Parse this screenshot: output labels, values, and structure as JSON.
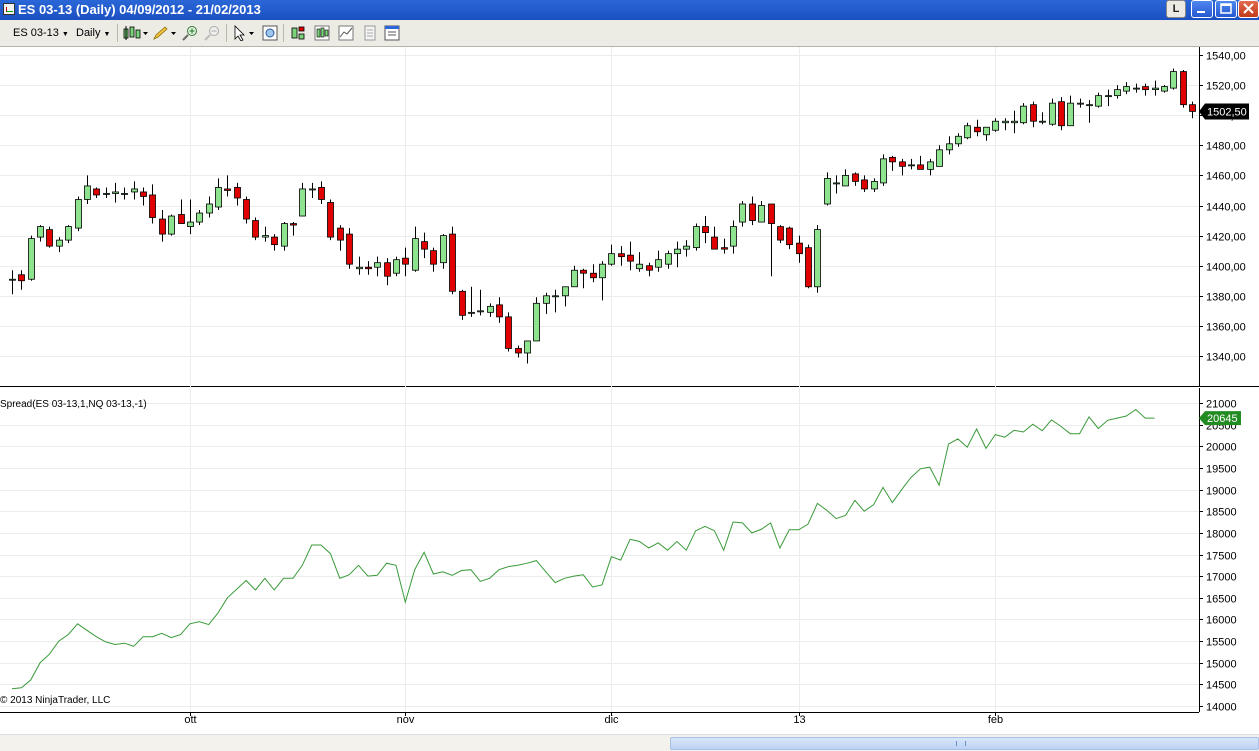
{
  "window": {
    "title": "ES 03-13 (Daily)  04/09/2012 - 21/02/2013",
    "button_l": "L"
  },
  "toolbar": {
    "instrument": "ES 03-13",
    "interval": "Daily"
  },
  "price_panel": {
    "last_price_label": "1502,50",
    "y_ticks": [
      "1540,00",
      "1520,00",
      "1500,00",
      "1480,00",
      "1460,00",
      "1440,00",
      "1420,00",
      "1400,00",
      "1380,00",
      "1360,00",
      "1340,00"
    ]
  },
  "spread_panel": {
    "indicator_label": "Spread(ES 03-13,1,NQ 03-13,-1)",
    "last_value_label": "20645",
    "copyright": "© 2013 NinjaTrader, LLC",
    "y_ticks": [
      "21000",
      "20500",
      "20000",
      "19500",
      "19000",
      "18500",
      "18000",
      "17500",
      "17000",
      "16500",
      "16000",
      "15500",
      "15000",
      "14500",
      "14000"
    ]
  },
  "x_axis": {
    "labels": [
      "ott",
      "nov",
      "dic",
      "13",
      "feb"
    ]
  },
  "colors": {
    "up_candle": "#8ee48e",
    "down_candle": "#e00000",
    "spread_line": "#3a9a3a",
    "spread_badge": "#228b22",
    "grid": "#ececec"
  },
  "chart_data": [
    {
      "type": "candlestick",
      "title": "ES 03-13 (Daily)",
      "ylim": [
        1330,
        1545
      ],
      "x_labels": [
        "ott",
        "nov",
        "dic",
        "13",
        "feb"
      ],
      "candles": [
        {
          "o": 1391,
          "h": 1397,
          "l": 1381,
          "c": 1391
        },
        {
          "o": 1394,
          "h": 1397,
          "l": 1384,
          "c": 1390
        },
        {
          "o": 1391,
          "h": 1420,
          "l": 1390,
          "c": 1418
        },
        {
          "o": 1419,
          "h": 1427,
          "l": 1416,
          "c": 1426
        },
        {
          "o": 1424,
          "h": 1426,
          "l": 1412,
          "c": 1413
        },
        {
          "o": 1413,
          "h": 1419,
          "l": 1409,
          "c": 1417
        },
        {
          "o": 1417,
          "h": 1427,
          "l": 1415,
          "c": 1426
        },
        {
          "o": 1425,
          "h": 1446,
          "l": 1423,
          "c": 1444
        },
        {
          "o": 1444,
          "h": 1460,
          "l": 1441,
          "c": 1453
        },
        {
          "o": 1451,
          "h": 1452,
          "l": 1445,
          "c": 1447
        },
        {
          "o": 1448,
          "h": 1452,
          "l": 1445,
          "c": 1448
        },
        {
          "o": 1448,
          "h": 1455,
          "l": 1442,
          "c": 1449
        },
        {
          "o": 1448,
          "h": 1452,
          "l": 1444,
          "c": 1448
        },
        {
          "o": 1449,
          "h": 1456,
          "l": 1444,
          "c": 1451
        },
        {
          "o": 1449,
          "h": 1452,
          "l": 1440,
          "c": 1446
        },
        {
          "o": 1447,
          "h": 1454,
          "l": 1428,
          "c": 1432
        },
        {
          "o": 1431,
          "h": 1437,
          "l": 1416,
          "c": 1421
        },
        {
          "o": 1421,
          "h": 1434,
          "l": 1420,
          "c": 1433
        },
        {
          "o": 1434,
          "h": 1444,
          "l": 1428,
          "c": 1428
        },
        {
          "o": 1426,
          "h": 1444,
          "l": 1421,
          "c": 1429
        },
        {
          "o": 1429,
          "h": 1437,
          "l": 1427,
          "c": 1435
        },
        {
          "o": 1435,
          "h": 1446,
          "l": 1432,
          "c": 1441
        },
        {
          "o": 1439,
          "h": 1458,
          "l": 1437,
          "c": 1452
        },
        {
          "o": 1451,
          "h": 1460,
          "l": 1446,
          "c": 1450
        },
        {
          "o": 1452,
          "h": 1455,
          "l": 1440,
          "c": 1445
        },
        {
          "o": 1444,
          "h": 1446,
          "l": 1428,
          "c": 1431
        },
        {
          "o": 1430,
          "h": 1432,
          "l": 1417,
          "c": 1419
        },
        {
          "o": 1419,
          "h": 1426,
          "l": 1416,
          "c": 1420
        },
        {
          "o": 1419,
          "h": 1421,
          "l": 1410,
          "c": 1414
        },
        {
          "o": 1413,
          "h": 1429,
          "l": 1410,
          "c": 1428
        },
        {
          "o": 1428,
          "h": 1429,
          "l": 1420,
          "c": 1427
        },
        {
          "o": 1433,
          "h": 1455,
          "l": 1433,
          "c": 1451
        },
        {
          "o": 1451,
          "h": 1455,
          "l": 1445,
          "c": 1451
        },
        {
          "o": 1452,
          "h": 1456,
          "l": 1441,
          "c": 1444
        },
        {
          "o": 1442,
          "h": 1444,
          "l": 1417,
          "c": 1419
        },
        {
          "o": 1425,
          "h": 1427,
          "l": 1410,
          "c": 1417
        },
        {
          "o": 1421,
          "h": 1425,
          "l": 1398,
          "c": 1401
        },
        {
          "o": 1398,
          "h": 1406,
          "l": 1394,
          "c": 1399
        },
        {
          "o": 1399,
          "h": 1403,
          "l": 1394,
          "c": 1398
        },
        {
          "o": 1399,
          "h": 1406,
          "l": 1393,
          "c": 1402
        },
        {
          "o": 1402,
          "h": 1405,
          "l": 1387,
          "c": 1393
        },
        {
          "o": 1395,
          "h": 1406,
          "l": 1393,
          "c": 1404
        },
        {
          "o": 1405,
          "h": 1412,
          "l": 1393,
          "c": 1401
        },
        {
          "o": 1397,
          "h": 1426,
          "l": 1396,
          "c": 1418
        },
        {
          "o": 1416,
          "h": 1422,
          "l": 1405,
          "c": 1411
        },
        {
          "o": 1410,
          "h": 1412,
          "l": 1396,
          "c": 1401
        },
        {
          "o": 1402,
          "h": 1421,
          "l": 1398,
          "c": 1420
        },
        {
          "o": 1421,
          "h": 1426,
          "l": 1381,
          "c": 1383
        },
        {
          "o": 1383,
          "h": 1384,
          "l": 1364,
          "c": 1367
        },
        {
          "o": 1369,
          "h": 1386,
          "l": 1366,
          "c": 1369
        },
        {
          "o": 1370,
          "h": 1384,
          "l": 1367,
          "c": 1370
        },
        {
          "o": 1369,
          "h": 1375,
          "l": 1366,
          "c": 1373
        },
        {
          "o": 1374,
          "h": 1379,
          "l": 1362,
          "c": 1366
        },
        {
          "o": 1366,
          "h": 1369,
          "l": 1343,
          "c": 1345
        },
        {
          "o": 1345,
          "h": 1347,
          "l": 1339,
          "c": 1342
        },
        {
          "o": 1342,
          "h": 1350,
          "l": 1335,
          "c": 1350
        },
        {
          "o": 1350,
          "h": 1379,
          "l": 1350,
          "c": 1375
        },
        {
          "o": 1375,
          "h": 1382,
          "l": 1368,
          "c": 1380
        },
        {
          "o": 1380,
          "h": 1384,
          "l": 1369,
          "c": 1380
        },
        {
          "o": 1380,
          "h": 1386,
          "l": 1373,
          "c": 1386
        },
        {
          "o": 1386,
          "h": 1400,
          "l": 1386,
          "c": 1397
        },
        {
          "o": 1397,
          "h": 1398,
          "l": 1385,
          "c": 1395
        },
        {
          "o": 1395,
          "h": 1401,
          "l": 1389,
          "c": 1392
        },
        {
          "o": 1392,
          "h": 1403,
          "l": 1377,
          "c": 1401
        },
        {
          "o": 1401,
          "h": 1414,
          "l": 1400,
          "c": 1408
        },
        {
          "o": 1408,
          "h": 1413,
          "l": 1400,
          "c": 1406
        },
        {
          "o": 1407,
          "h": 1416,
          "l": 1397,
          "c": 1403
        },
        {
          "o": 1398,
          "h": 1409,
          "l": 1396,
          "c": 1401
        },
        {
          "o": 1400,
          "h": 1402,
          "l": 1393,
          "c": 1397
        },
        {
          "o": 1399,
          "h": 1410,
          "l": 1396,
          "c": 1404
        },
        {
          "o": 1401,
          "h": 1410,
          "l": 1398,
          "c": 1408
        },
        {
          "o": 1408,
          "h": 1416,
          "l": 1399,
          "c": 1411
        },
        {
          "o": 1411,
          "h": 1417,
          "l": 1406,
          "c": 1413
        },
        {
          "o": 1412,
          "h": 1428,
          "l": 1410,
          "c": 1426
        },
        {
          "o": 1426,
          "h": 1433,
          "l": 1415,
          "c": 1422
        },
        {
          "o": 1419,
          "h": 1426,
          "l": 1411,
          "c": 1411
        },
        {
          "o": 1412,
          "h": 1418,
          "l": 1408,
          "c": 1411
        },
        {
          "o": 1413,
          "h": 1430,
          "l": 1408,
          "c": 1426
        },
        {
          "o": 1429,
          "h": 1443,
          "l": 1426,
          "c": 1441
        },
        {
          "o": 1441,
          "h": 1446,
          "l": 1427,
          "c": 1430
        },
        {
          "o": 1429,
          "h": 1443,
          "l": 1429,
          "c": 1440
        },
        {
          "o": 1441,
          "h": 1441,
          "l": 1393,
          "c": 1428
        },
        {
          "o": 1426,
          "h": 1427,
          "l": 1415,
          "c": 1417
        },
        {
          "o": 1425,
          "h": 1426,
          "l": 1411,
          "c": 1414
        },
        {
          "o": 1415,
          "h": 1420,
          "l": 1402,
          "c": 1408
        },
        {
          "o": 1412,
          "h": 1414,
          "l": 1385,
          "c": 1386
        },
        {
          "o": 1386,
          "h": 1427,
          "l": 1382,
          "c": 1424
        },
        {
          "o": 1441,
          "h": 1462,
          "l": 1440,
          "c": 1458
        },
        {
          "o": 1455,
          "h": 1460,
          "l": 1448,
          "c": 1455
        },
        {
          "o": 1453,
          "h": 1464,
          "l": 1453,
          "c": 1460
        },
        {
          "o": 1461,
          "h": 1462,
          "l": 1453,
          "c": 1456
        },
        {
          "o": 1457,
          "h": 1460,
          "l": 1449,
          "c": 1451
        },
        {
          "o": 1451,
          "h": 1458,
          "l": 1449,
          "c": 1456
        },
        {
          "o": 1455,
          "h": 1474,
          "l": 1453,
          "c": 1471
        },
        {
          "o": 1472,
          "h": 1473,
          "l": 1463,
          "c": 1469
        },
        {
          "o": 1469,
          "h": 1471,
          "l": 1460,
          "c": 1466
        },
        {
          "o": 1467,
          "h": 1471,
          "l": 1464,
          "c": 1467
        },
        {
          "o": 1467,
          "h": 1473,
          "l": 1464,
          "c": 1464
        },
        {
          "o": 1464,
          "h": 1471,
          "l": 1460,
          "c": 1469
        },
        {
          "o": 1466,
          "h": 1480,
          "l": 1466,
          "c": 1477
        },
        {
          "o": 1477,
          "h": 1486,
          "l": 1474,
          "c": 1481
        },
        {
          "o": 1481,
          "h": 1488,
          "l": 1479,
          "c": 1486
        },
        {
          "o": 1485,
          "h": 1495,
          "l": 1484,
          "c": 1493
        },
        {
          "o": 1492,
          "h": 1497,
          "l": 1486,
          "c": 1489
        },
        {
          "o": 1487,
          "h": 1491,
          "l": 1483,
          "c": 1492
        },
        {
          "o": 1490,
          "h": 1498,
          "l": 1489,
          "c": 1496
        },
        {
          "o": 1495,
          "h": 1498,
          "l": 1490,
          "c": 1496
        },
        {
          "o": 1495,
          "h": 1503,
          "l": 1488,
          "c": 1496
        },
        {
          "o": 1495,
          "h": 1508,
          "l": 1494,
          "c": 1506
        },
        {
          "o": 1507,
          "h": 1509,
          "l": 1492,
          "c": 1496
        },
        {
          "o": 1496,
          "h": 1502,
          "l": 1494,
          "c": 1496
        },
        {
          "o": 1494,
          "h": 1511,
          "l": 1493,
          "c": 1508
        },
        {
          "o": 1509,
          "h": 1512,
          "l": 1490,
          "c": 1493
        },
        {
          "o": 1493,
          "h": 1513,
          "l": 1493,
          "c": 1508
        },
        {
          "o": 1508,
          "h": 1511,
          "l": 1505,
          "c": 1508
        },
        {
          "o": 1507,
          "h": 1510,
          "l": 1495,
          "c": 1507
        },
        {
          "o": 1506,
          "h": 1515,
          "l": 1505,
          "c": 1513
        },
        {
          "o": 1513,
          "h": 1517,
          "l": 1506,
          "c": 1513
        },
        {
          "o": 1513,
          "h": 1520,
          "l": 1511,
          "c": 1517
        },
        {
          "o": 1516,
          "h": 1522,
          "l": 1514,
          "c": 1519
        },
        {
          "o": 1518,
          "h": 1521,
          "l": 1515,
          "c": 1518
        },
        {
          "o": 1519,
          "h": 1521,
          "l": 1513,
          "c": 1517
        },
        {
          "o": 1517,
          "h": 1523,
          "l": 1513,
          "c": 1518
        },
        {
          "o": 1516,
          "h": 1520,
          "l": 1515,
          "c": 1519
        },
        {
          "o": 1518,
          "h": 1531,
          "l": 1517,
          "c": 1529
        },
        {
          "o": 1529,
          "h": 1530,
          "l": 1505,
          "c": 1507
        },
        {
          "o": 1507,
          "h": 1509,
          "l": 1498,
          "c": 1502.5
        }
      ]
    },
    {
      "type": "line",
      "title": "Spread(ES 03-13,1,NQ 03-13,-1)",
      "ylim": [
        14000,
        21000
      ],
      "series": [
        {
          "values": [
            14400,
            14420,
            14600,
            15000,
            15200,
            15500,
            15650,
            15900,
            15750,
            15600,
            15480,
            15420,
            15450,
            15380,
            15600,
            15600,
            15680,
            15580,
            15650,
            15900,
            15950,
            15880,
            16150,
            16500,
            16700,
            16900,
            16680,
            16950,
            16680,
            16950,
            16950,
            17250,
            17720,
            17720,
            17520,
            16950,
            17030,
            17250,
            17000,
            17020,
            17300,
            17250,
            16400,
            17150,
            17550,
            17050,
            17100,
            17020,
            17130,
            17150,
            16880,
            16950,
            17150,
            17220,
            17250,
            17300,
            17360,
            17100,
            16850,
            16950,
            17000,
            17030,
            16750,
            16800,
            17450,
            17370,
            17850,
            17800,
            17650,
            17770,
            17600,
            17800,
            17600,
            18050,
            18150,
            18050,
            17600,
            18250,
            18230,
            18000,
            18080,
            18230,
            17650,
            18070,
            18070,
            18200,
            18680,
            18520,
            18330,
            18400,
            18750,
            18500,
            18650,
            19050,
            18700,
            19000,
            19280,
            19480,
            19520,
            19100,
            20050,
            20170,
            19980,
            20400,
            19950,
            20270,
            20210,
            20370,
            20330,
            20510,
            20360,
            20610,
            20460,
            20290,
            20290,
            20680,
            20410,
            20600,
            20650,
            20700,
            20850,
            20650,
            20650
          ]
        }
      ]
    }
  ]
}
